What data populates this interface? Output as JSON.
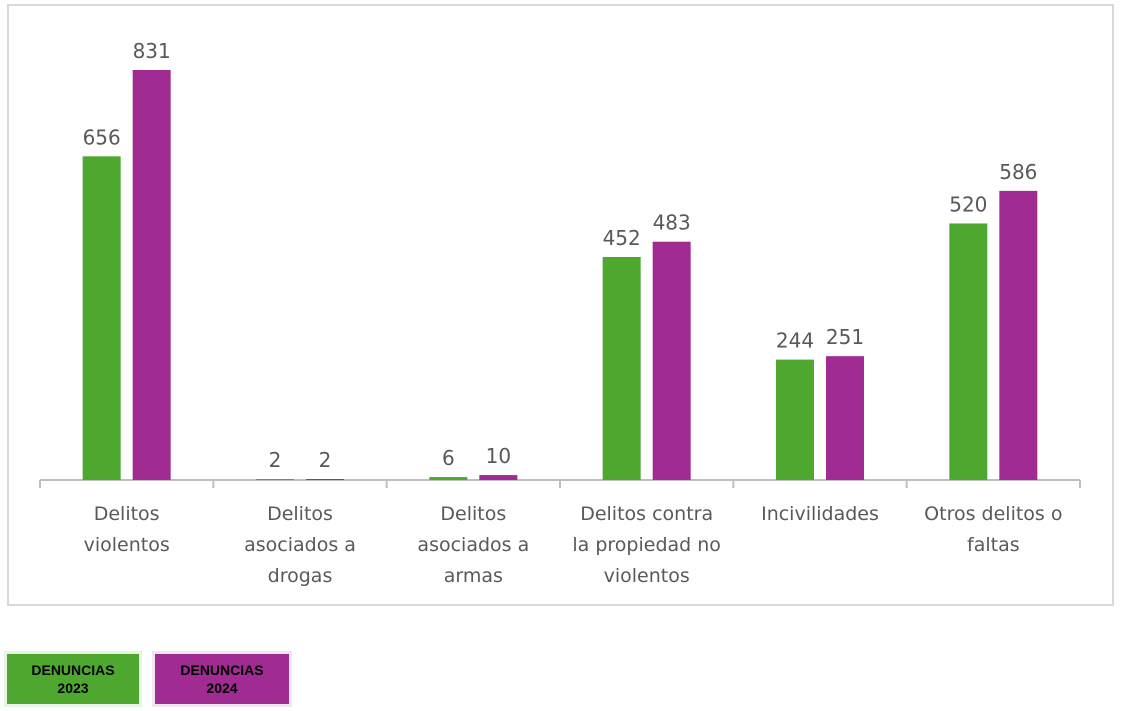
{
  "chart_data": {
    "type": "bar",
    "categories": [
      [
        "Delitos",
        "violentos"
      ],
      [
        "Delitos",
        "asociados a",
        "drogas"
      ],
      [
        "Delitos",
        "asociados a",
        "armas"
      ],
      [
        "Delitos contra",
        "la propiedad no",
        "violentos"
      ],
      [
        "Incivilidades"
      ],
      [
        "Otros delitos o",
        "faltas"
      ]
    ],
    "series": [
      {
        "name": "DENUNCIAS 2023",
        "color": "#4ea72e",
        "values": [
          656,
          2,
          6,
          452,
          244,
          520
        ]
      },
      {
        "name": "DENUNCIAS 2024",
        "color": "#a02b93",
        "values": [
          831,
          2,
          10,
          483,
          251,
          586
        ]
      }
    ],
    "ylim": [
      0,
      831
    ],
    "title": "",
    "xlabel": "",
    "ylabel": "",
    "grid": false,
    "legend_position": "bottom-left"
  },
  "legend": [
    {
      "line1": "DENUNCIAS",
      "line2": "2023",
      "color": "#4ea72e"
    },
    {
      "line1": "DENUNCIAS",
      "line2": "2024",
      "color": "#a02b93"
    }
  ],
  "colors": {
    "axis": "#bfbfbf",
    "label": "#595959",
    "frame": "#d9d9d9"
  }
}
